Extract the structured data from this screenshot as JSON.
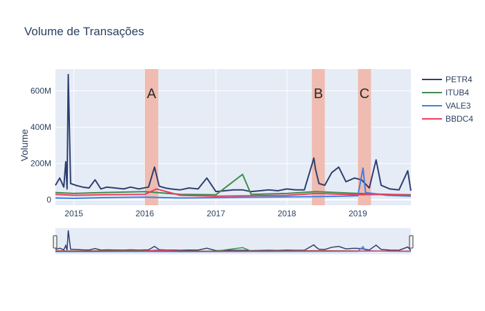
{
  "chart_data": {
    "type": "line",
    "title": "Volume de Transações",
    "ylabel": "Volume",
    "xlabel": "",
    "x_range": [
      "2014-09-28",
      "2019-10-01"
    ],
    "ylim": [
      -30,
      720
    ],
    "y_ticks": [
      {
        "value": 0,
        "label": "0"
      },
      {
        "value": 200,
        "label": "200M"
      },
      {
        "value": 400,
        "label": "400M"
      },
      {
        "value": 600,
        "label": "600M"
      }
    ],
    "x_ticks": [
      {
        "date": "2015-01-01",
        "label": "2015"
      },
      {
        "date": "2016-01-01",
        "label": "2016"
      },
      {
        "date": "2017-01-01",
        "label": "2017"
      },
      {
        "date": "2018-01-01",
        "label": "2018"
      },
      {
        "date": "2019-01-01",
        "label": "2019"
      }
    ],
    "value_unit": "millions",
    "grid": true,
    "legend_position": "right",
    "highlight_periods": [
      {
        "label": "A",
        "start": "2016-01-01",
        "end": "2016-03-10"
      },
      {
        "label": "B",
        "start": "2018-05-10",
        "end": "2018-07-15"
      },
      {
        "label": "C",
        "start": "2019-01-01",
        "end": "2019-03-10"
      }
    ],
    "series": [
      {
        "name": "PETR4",
        "color": "#2d3e6f",
        "x": [
          "2014-09-28",
          "2014-10-20",
          "2014-11-10",
          "2014-11-20",
          "2014-11-27",
          "2014-12-03",
          "2014-12-15",
          "2015-01-10",
          "2015-02-15",
          "2015-03-20",
          "2015-04-20",
          "2015-05-20",
          "2015-06-20",
          "2015-08-01",
          "2015-09-15",
          "2015-10-20",
          "2015-12-01",
          "2016-01-20",
          "2016-02-20",
          "2016-03-15",
          "2016-04-15",
          "2016-05-15",
          "2016-07-01",
          "2016-08-15",
          "2016-10-01",
          "2016-11-15",
          "2017-01-01",
          "2017-02-15",
          "2017-04-01",
          "2017-05-18",
          "2017-07-01",
          "2017-08-15",
          "2017-10-01",
          "2017-11-15",
          "2018-01-01",
          "2018-02-15",
          "2018-04-01",
          "2018-05-20",
          "2018-05-28",
          "2018-06-15",
          "2018-07-15",
          "2018-08-20",
          "2018-09-25",
          "2018-11-01",
          "2018-12-15",
          "2019-01-20",
          "2019-03-01",
          "2019-04-05",
          "2019-05-01",
          "2019-06-15",
          "2019-08-01",
          "2019-09-15",
          "2019-10-01"
        ],
        "y": [
          80,
          120,
          70,
          210,
          60,
          690,
          90,
          80,
          70,
          65,
          110,
          60,
          70,
          65,
          60,
          70,
          60,
          70,
          180,
          75,
          65,
          60,
          55,
          65,
          60,
          120,
          45,
          50,
          55,
          55,
          45,
          50,
          55,
          50,
          60,
          55,
          55,
          230,
          170,
          90,
          80,
          150,
          180,
          100,
          120,
          110,
          65,
          220,
          80,
          60,
          55,
          160,
          50
        ]
      },
      {
        "name": "ITUB4",
        "color": "#3d8c4a",
        "x": [
          "2014-09-28",
          "2015-01-01",
          "2015-06-01",
          "2016-01-01",
          "2016-07-01",
          "2017-01-01",
          "2017-05-18",
          "2017-07-01",
          "2018-01-01",
          "2018-06-01",
          "2019-01-01",
          "2019-06-01",
          "2019-10-01"
        ],
        "y": [
          40,
          35,
          40,
          45,
          30,
          28,
          140,
          30,
          35,
          45,
          35,
          30,
          28
        ]
      },
      {
        "name": "VALE3",
        "color": "#3f7fe6",
        "x": [
          "2014-09-28",
          "2015-01-01",
          "2015-06-01",
          "2016-01-01",
          "2016-07-01",
          "2017-01-01",
          "2017-07-01",
          "2018-01-01",
          "2018-07-01",
          "2019-01-01",
          "2019-01-28",
          "2019-02-10",
          "2019-06-01",
          "2019-10-01"
        ],
        "y": [
          10,
          8,
          12,
          15,
          10,
          12,
          14,
          16,
          18,
          22,
          175,
          40,
          25,
          20
        ]
      },
      {
        "name": "BBDC4",
        "color": "#ee3a5e",
        "x": [
          "2014-09-28",
          "2015-01-01",
          "2015-06-01",
          "2016-01-01",
          "2016-03-01",
          "2016-07-01",
          "2017-01-01",
          "2017-07-01",
          "2018-01-01",
          "2018-06-01",
          "2019-01-01",
          "2019-06-01",
          "2019-10-01"
        ],
        "y": [
          30,
          25,
          28,
          30,
          60,
          25,
          20,
          22,
          25,
          35,
          28,
          30,
          25
        ]
      }
    ]
  }
}
